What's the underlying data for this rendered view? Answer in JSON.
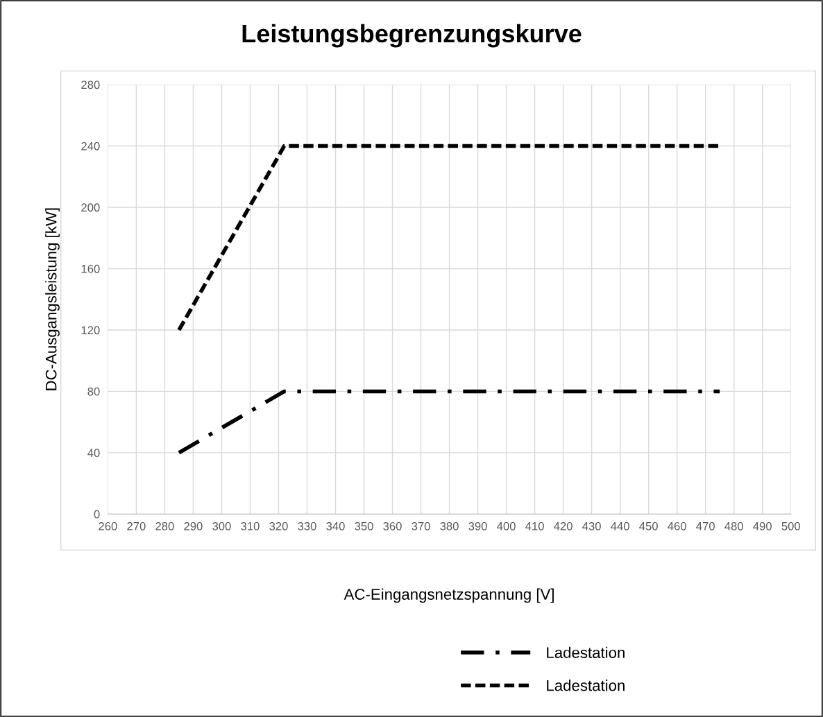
{
  "chart_data": {
    "type": "line",
    "title": "Leistungsbegrenzungskurve",
    "xlabel": "AC-Eingangsnetzspannung [V]",
    "ylabel": "DC-Ausgangsleistung [kW]",
    "series": [
      {
        "name": "Ladestation",
        "color": "#000000",
        "x": [
          285,
          322,
          475
        ],
        "values": [
          40,
          80,
          80
        ],
        "line_style": "dashdot"
      },
      {
        "name": "Ladestation",
        "color": "#000000",
        "x": [
          285,
          322,
          475
        ],
        "values": [
          120,
          240,
          240
        ],
        "line_style": "dashed"
      }
    ],
    "xlim": [
      260,
      500
    ],
    "xticks": [
      260,
      270,
      280,
      290,
      300,
      310,
      320,
      330,
      340,
      350,
      360,
      370,
      380,
      390,
      400,
      410,
      420,
      430,
      440,
      450,
      460,
      470,
      480,
      490,
      500
    ],
    "ylim": [
      0,
      280
    ],
    "yticks": [
      0,
      40,
      80,
      120,
      160,
      200,
      240,
      280
    ],
    "grid": true,
    "legend": "bottom",
    "marker": "none"
  }
}
